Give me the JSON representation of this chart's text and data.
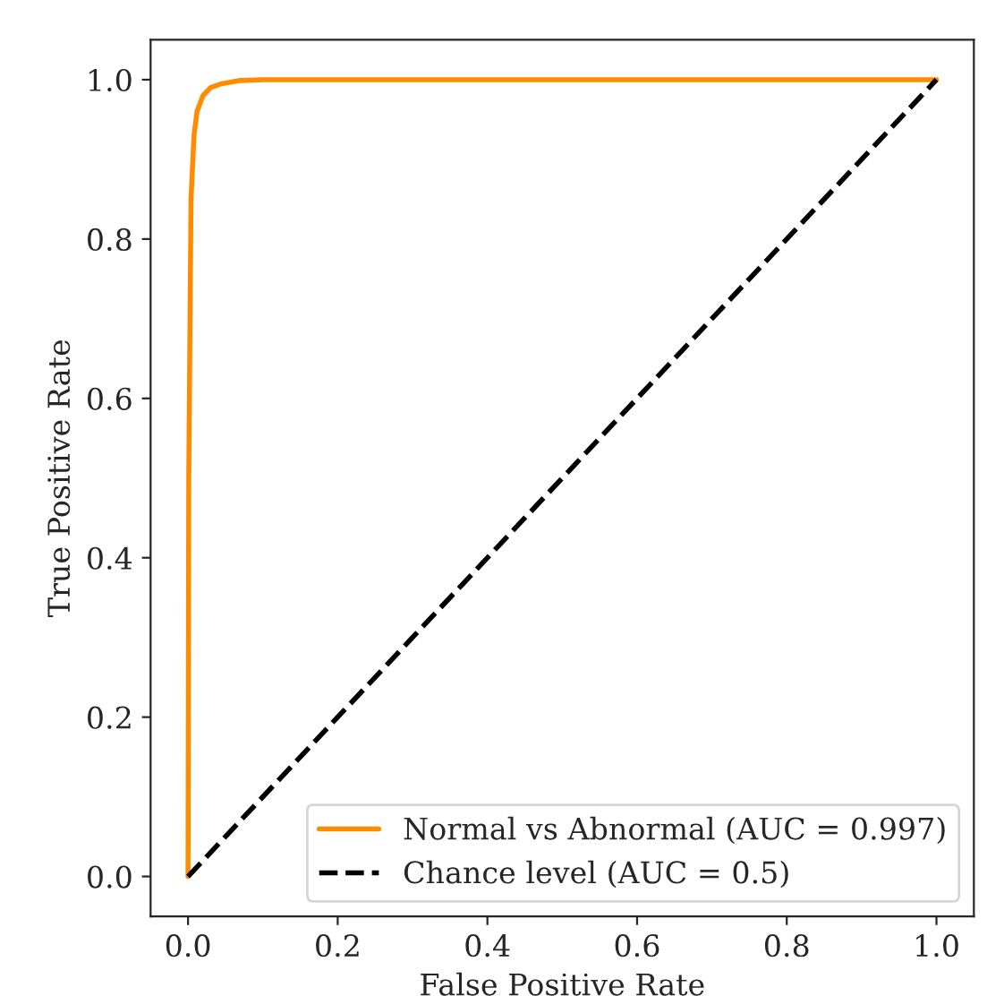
{
  "chart_data": {
    "type": "line",
    "xlabel": "False Positive Rate",
    "ylabel": "True Positive Rate",
    "xlim": [
      -0.05,
      1.05
    ],
    "ylim": [
      -0.05,
      1.05
    ],
    "xticks": [
      {
        "value": 0,
        "label": "0.0"
      },
      {
        "value": 0.2,
        "label": "0.2"
      },
      {
        "value": 0.4,
        "label": "0.4"
      },
      {
        "value": 0.6,
        "label": "0.6"
      },
      {
        "value": 0.8,
        "label": "0.8"
      },
      {
        "value": 1.0,
        "label": "1.0"
      }
    ],
    "yticks": [
      {
        "value": 0,
        "label": "0.0"
      },
      {
        "value": 0.2,
        "label": "0.2"
      },
      {
        "value": 0.4,
        "label": "0.4"
      },
      {
        "value": 0.6,
        "label": "0.6"
      },
      {
        "value": 0.8,
        "label": "0.8"
      },
      {
        "value": 1.0,
        "label": "1.0"
      }
    ],
    "grid": false,
    "legend": "bottom right",
    "marker": "none",
    "series": [
      {
        "name": "Normal vs Abnormal (AUC = 0.997)",
        "color": "#ff8c00",
        "line_style": "solid",
        "x": [
          0,
          0.001,
          0.004,
          0.008,
          0.012,
          0.02,
          0.03,
          0.045,
          0.07,
          0.1,
          1.0
        ],
        "values": [
          0,
          0.5,
          0.85,
          0.93,
          0.96,
          0.98,
          0.99,
          0.995,
          0.999,
          1.0,
          1.0
        ]
      },
      {
        "name": "Chance level (AUC = 0.5)",
        "color": "#000000",
        "line_style": "dashed",
        "x": [
          0,
          1
        ],
        "values": [
          0,
          1
        ]
      }
    ]
  }
}
